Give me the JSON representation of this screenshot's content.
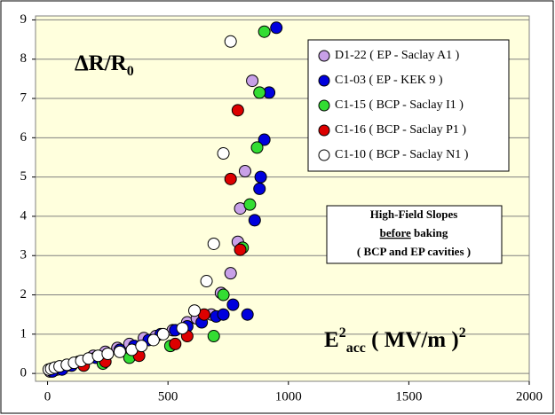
{
  "chart_data": {
    "type": "scatter",
    "annotation_y": [
      {
        "text": "ΔR/R"
      },
      {
        "text": "0",
        "shift": "sub"
      }
    ],
    "annotation_x": [
      {
        "text": "E"
      },
      {
        "text": "2",
        "shift": "super"
      },
      {
        "text": "acc",
        "shift": "sub"
      },
      {
        "text": " ( MV/m )"
      },
      {
        "text": "2",
        "shift": "super"
      }
    ],
    "note_box": {
      "line1": "High-Field Slopes",
      "line2_underlined": "before",
      "line2_rest": "baking",
      "line3": "( BCP and EP cavities )"
    },
    "xlim": [
      -50,
      2000
    ],
    "xticks": [
      0,
      500,
      1000,
      1500,
      2000
    ],
    "ylim": [
      -0.2,
      9.1
    ],
    "yticks": [
      0,
      1,
      2,
      3,
      4,
      5,
      6,
      7,
      8,
      9
    ],
    "grid": true,
    "legend_position": "upper right",
    "series": [
      {
        "name": "D1-22  ( EP - Saclay A1 )",
        "color": "#c8a0e8",
        "x": [
          10,
          40,
          80,
          130,
          190,
          240,
          290,
          340,
          400,
          450,
          520,
          580,
          620,
          680,
          720,
          760,
          790,
          800,
          820,
          850
        ],
        "values": [
          0.05,
          0.1,
          0.2,
          0.3,
          0.45,
          0.55,
          0.65,
          0.75,
          0.9,
          0.95,
          1.1,
          1.3,
          1.4,
          1.5,
          2.05,
          2.55,
          3.35,
          4.2,
          5.15,
          7.45
        ]
      },
      {
        "name": "C1-03  ( EP - KEK 9 )",
        "color": "#0000dd",
        "x": [
          20,
          60,
          100,
          150,
          200,
          250,
          300,
          360,
          420,
          470,
          530,
          580,
          640,
          700,
          730,
          770,
          830,
          860,
          880,
          885,
          900,
          920,
          950
        ],
        "values": [
          0.05,
          0.1,
          0.2,
          0.3,
          0.4,
          0.5,
          0.6,
          0.7,
          0.85,
          1.0,
          1.1,
          1.2,
          1.3,
          1.45,
          1.5,
          1.75,
          1.5,
          3.9,
          4.7,
          5.0,
          5.95,
          7.15,
          8.8
        ]
      },
      {
        "name": "C1-15  ( BCP - Saclay I1 )",
        "color": "#33dd33",
        "x": [
          230,
          340,
          510,
          690,
          730,
          810,
          840,
          870,
          880,
          900
        ],
        "values": [
          0.25,
          0.4,
          0.7,
          0.95,
          2.0,
          3.2,
          4.3,
          5.75,
          7.15,
          8.7
        ]
      },
      {
        "name": "C1-16  ( BCP - Saclay P1 )",
        "color": "#dd0000",
        "x": [
          150,
          240,
          380,
          530,
          580,
          650,
          800,
          760,
          790
        ],
        "values": [
          0.2,
          0.3,
          0.45,
          0.75,
          0.95,
          1.5,
          3.15,
          4.95,
          6.7
        ]
      },
      {
        "name": "C1-10  ( BCP - Saclay N1 )",
        "color": "#ffffff",
        "x": [
          5,
          15,
          30,
          50,
          80,
          110,
          140,
          170,
          210,
          250,
          300,
          350,
          390,
          440,
          480,
          560,
          610,
          660,
          690,
          730,
          760
        ],
        "values": [
          0.1,
          0.12,
          0.15,
          0.18,
          0.22,
          0.27,
          0.32,
          0.38,
          0.45,
          0.5,
          0.55,
          0.6,
          0.7,
          0.85,
          1.0,
          1.15,
          1.6,
          2.35,
          3.3,
          5.6,
          8.45
        ]
      }
    ]
  }
}
